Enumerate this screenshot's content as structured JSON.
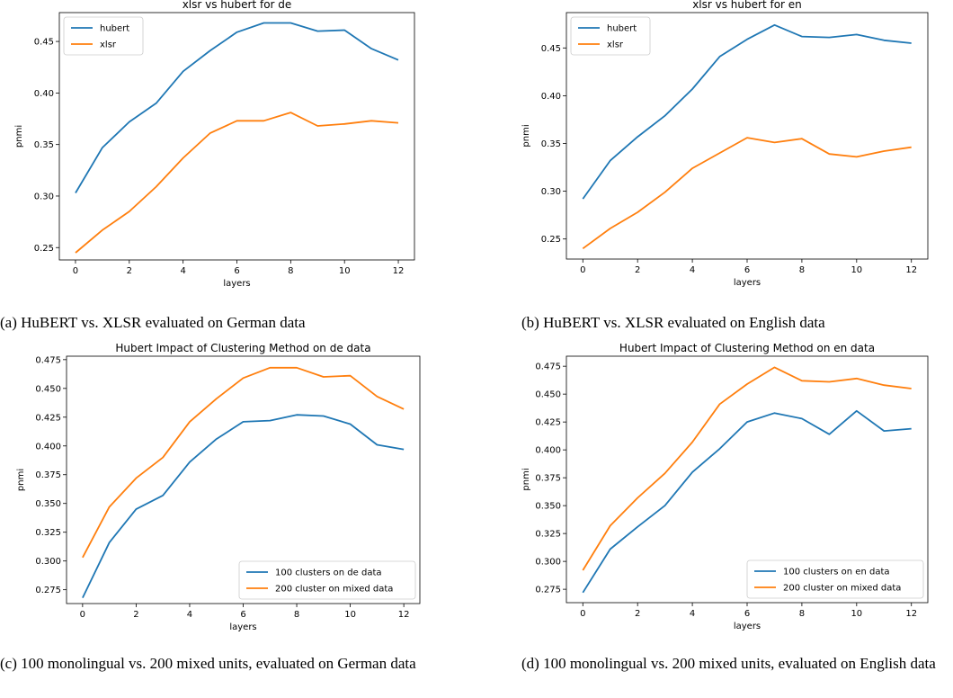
{
  "captions": {
    "a": "(a) HuBERT vs. XLSR evaluated on German data",
    "b": "(b) HuBERT vs. XLSR evaluated on English data",
    "c": "(c) 100 monolingual vs. 200 mixed units, evaluated on German data",
    "d": "(d) 100 monolingual vs. 200 mixed units, evaluated on English data"
  },
  "chart_data": [
    {
      "type": "line",
      "title": "xlsr vs hubert for de",
      "xlabel": "layers",
      "ylabel": "pnmi",
      "x": [
        0,
        1,
        2,
        3,
        4,
        5,
        6,
        7,
        8,
        9,
        10,
        11,
        12
      ],
      "xticks": [
        0,
        2,
        4,
        6,
        8,
        10,
        12
      ],
      "yticks": [
        0.25,
        0.3,
        0.35,
        0.4,
        0.45
      ],
      "ytick_labels": [
        "0.25",
        "0.30",
        "0.35",
        "0.40",
        "0.45"
      ],
      "ylim": [
        0.238,
        0.478
      ],
      "legend": "top-left",
      "grid": false,
      "series": [
        {
          "name": "hubert",
          "color": "#1f77b4",
          "values": [
            0.303,
            0.347,
            0.372,
            0.39,
            0.421,
            0.441,
            0.459,
            0.468,
            0.468,
            0.46,
            0.461,
            0.443,
            0.432
          ]
        },
        {
          "name": "xlsr",
          "color": "#ff7f0e",
          "values": [
            0.245,
            0.267,
            0.285,
            0.309,
            0.337,
            0.361,
            0.373,
            0.373,
            0.381,
            0.368,
            0.37,
            0.373,
            0.371
          ]
        }
      ]
    },
    {
      "type": "line",
      "title": "xlsr vs hubert for en",
      "xlabel": "layers",
      "ylabel": "pnmi",
      "x": [
        0,
        1,
        2,
        3,
        4,
        5,
        6,
        7,
        8,
        9,
        10,
        11,
        12
      ],
      "xticks": [
        0,
        2,
        4,
        6,
        8,
        10,
        12
      ],
      "yticks": [
        0.25,
        0.3,
        0.35,
        0.4,
        0.45
      ],
      "ytick_labels": [
        "0.25",
        "0.30",
        "0.35",
        "0.40",
        "0.45"
      ],
      "ylim": [
        0.229,
        0.487
      ],
      "legend": "top-left",
      "grid": false,
      "series": [
        {
          "name": "hubert",
          "color": "#1f77b4",
          "values": [
            0.292,
            0.332,
            0.357,
            0.379,
            0.407,
            0.441,
            0.459,
            0.474,
            0.462,
            0.461,
            0.464,
            0.458,
            0.455
          ]
        },
        {
          "name": "xlsr",
          "color": "#ff7f0e",
          "values": [
            0.24,
            0.261,
            0.278,
            0.299,
            0.324,
            0.34,
            0.356,
            0.351,
            0.355,
            0.339,
            0.336,
            0.342,
            0.346
          ]
        }
      ]
    },
    {
      "type": "line",
      "title": "Hubert Impact of Clustering Method on de data",
      "xlabel": "layers",
      "ylabel": "pnmi",
      "x": [
        0,
        1,
        2,
        3,
        4,
        5,
        6,
        7,
        8,
        9,
        10,
        11,
        12
      ],
      "xticks": [
        0,
        2,
        4,
        6,
        8,
        10,
        12
      ],
      "yticks": [
        0.275,
        0.3,
        0.325,
        0.35,
        0.375,
        0.4,
        0.425,
        0.45,
        0.475
      ],
      "ytick_labels": [
        "0.275",
        "0.300",
        "0.325",
        "0.350",
        "0.375",
        "0.400",
        "0.425",
        "0.450",
        "0.475"
      ],
      "ylim": [
        0.263,
        0.478
      ],
      "legend": "bottom-right",
      "grid": false,
      "series": [
        {
          "name": "100 clusters on de data",
          "color": "#1f77b4",
          "values": [
            0.268,
            0.316,
            0.345,
            0.357,
            0.386,
            0.406,
            0.421,
            0.422,
            0.427,
            0.426,
            0.419,
            0.401,
            0.397
          ]
        },
        {
          "name": "200 cluster on mixed data",
          "color": "#ff7f0e",
          "values": [
            0.303,
            0.347,
            0.372,
            0.39,
            0.421,
            0.441,
            0.459,
            0.468,
            0.468,
            0.46,
            0.461,
            0.443,
            0.432
          ]
        }
      ]
    },
    {
      "type": "line",
      "title": "Hubert Impact of Clustering Method on en data",
      "xlabel": "layers",
      "ylabel": "pnmi",
      "x": [
        0,
        1,
        2,
        3,
        4,
        5,
        6,
        7,
        8,
        9,
        10,
        11,
        12
      ],
      "xticks": [
        0,
        2,
        4,
        6,
        8,
        10,
        12
      ],
      "yticks": [
        0.275,
        0.3,
        0.325,
        0.35,
        0.375,
        0.4,
        0.425,
        0.45,
        0.475
      ],
      "ytick_labels": [
        "0.275",
        "0.300",
        "0.325",
        "0.350",
        "0.375",
        "0.400",
        "0.425",
        "0.450",
        "0.475"
      ],
      "ylim": [
        0.263,
        0.484
      ],
      "legend": "bottom-right",
      "grid": false,
      "series": [
        {
          "name": "100 clusters on en data",
          "color": "#1f77b4",
          "values": [
            0.272,
            0.311,
            0.331,
            0.35,
            0.38,
            0.401,
            0.425,
            0.433,
            0.428,
            0.414,
            0.435,
            0.417,
            0.419
          ]
        },
        {
          "name": "200 cluster on mixed data",
          "color": "#ff7f0e",
          "values": [
            0.292,
            0.332,
            0.357,
            0.379,
            0.407,
            0.441,
            0.459,
            0.474,
            0.462,
            0.461,
            0.464,
            0.458,
            0.455
          ]
        }
      ]
    }
  ]
}
